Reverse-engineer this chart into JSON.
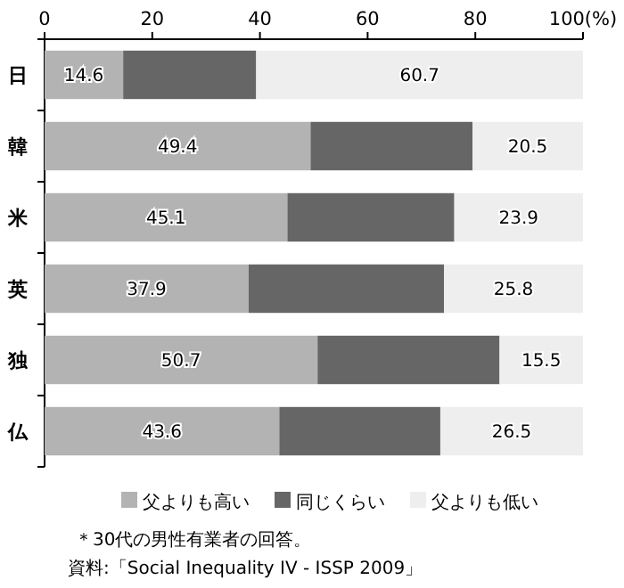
{
  "chart_data": {
    "type": "bar",
    "orientation": "horizontal",
    "stacked": true,
    "categories": [
      "日",
      "韓",
      "米",
      "英",
      "独",
      "仏"
    ],
    "series": [
      {
        "name": "父よりも高い",
        "color": "#b3b3b3",
        "values": [
          14.6,
          49.4,
          45.1,
          37.9,
          50.7,
          43.6
        ],
        "value_labels": [
          "14.6",
          "49.4",
          "45.1",
          "37.9",
          "50.7",
          "43.6"
        ]
      },
      {
        "name": "同じくらい",
        "color": "#666666",
        "values": [
          24.7,
          30.1,
          31.0,
          36.3,
          33.8,
          29.9
        ]
      },
      {
        "name": "父よりも低い",
        "color": "#eeeeee",
        "values": [
          60.7,
          20.5,
          23.9,
          25.8,
          15.5,
          26.5
        ],
        "value_labels": [
          "60.7",
          "20.5",
          "23.9",
          "25.8",
          "15.5",
          "26.5"
        ]
      }
    ],
    "xlim": [
      0,
      100
    ],
    "xticks": [
      0,
      20,
      40,
      60,
      80,
      {
        "value": 100,
        "label": "100(%)"
      }
    ],
    "legend": "bottom",
    "annotations": [
      "＊30代の男性有業者の回答。",
      "資料:「Social Inequality IV - ISSP 2009」"
    ]
  }
}
